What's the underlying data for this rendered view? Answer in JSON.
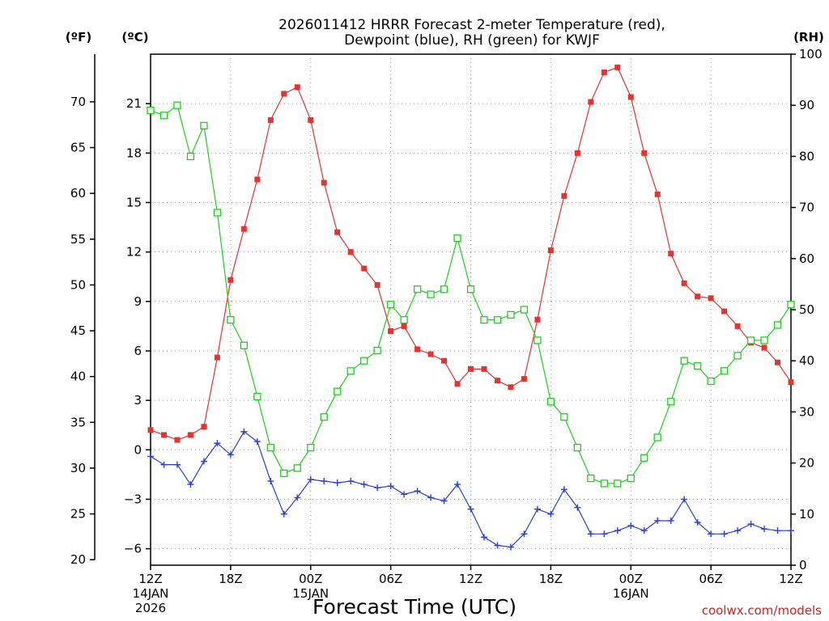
{
  "title_line1": "2026011412 HRRR Forecast 2-meter Temperature (red),",
  "title_line2": "Dewpoint (blue), RH (green) for KWJF",
  "credit": "coolwx.com/models",
  "chart_data": {
    "type": "line",
    "title": "2026011412 HRRR Forecast 2-meter Temperature (red), Dewpoint (blue), RH (green) for KWJF",
    "xlabel": "Forecast Time (UTC)",
    "x_hours": [
      0,
      1,
      2,
      3,
      4,
      5,
      6,
      7,
      8,
      9,
      10,
      11,
      12,
      13,
      14,
      15,
      16,
      17,
      18,
      19,
      20,
      21,
      22,
      23,
      24,
      25,
      26,
      27,
      28,
      29,
      30,
      31,
      32,
      33,
      34,
      35,
      36,
      37,
      38,
      39,
      40,
      41,
      42,
      43,
      44,
      45,
      46,
      47,
      48
    ],
    "x_ticks": [
      {
        "hour": 0,
        "label": "12Z",
        "sub1": "14JAN",
        "sub2": "2026"
      },
      {
        "hour": 6,
        "label": "18Z",
        "sub1": "",
        "sub2": ""
      },
      {
        "hour": 12,
        "label": "00Z",
        "sub1": "15JAN",
        "sub2": ""
      },
      {
        "hour": 18,
        "label": "06Z",
        "sub1": "",
        "sub2": ""
      },
      {
        "hour": 24,
        "label": "12Z",
        "sub1": "",
        "sub2": ""
      },
      {
        "hour": 30,
        "label": "18Z",
        "sub1": "",
        "sub2": ""
      },
      {
        "hour": 36,
        "label": "00Z",
        "sub1": "16JAN",
        "sub2": ""
      },
      {
        "hour": 42,
        "label": "06Z",
        "sub1": "",
        "sub2": ""
      },
      {
        "hour": 48,
        "label": "12Z",
        "sub1": "",
        "sub2": ""
      }
    ],
    "left_axis_f": {
      "unit": "(ºF)",
      "ticks": [
        20,
        25,
        30,
        35,
        40,
        45,
        50,
        55,
        60,
        65,
        70
      ],
      "labels": [
        "20",
        "25",
        "30",
        "35",
        "40",
        "45",
        "50",
        "55",
        "60",
        "65",
        "70"
      ]
    },
    "left_axis_c": {
      "unit": "(ºC)",
      "ticks": [
        -6,
        -3,
        0,
        3,
        6,
        9,
        12,
        15,
        18,
        21
      ],
      "labels": [
        "−6",
        "−3",
        "0",
        "3",
        "6",
        "9",
        "12",
        "15",
        "18",
        "21"
      ],
      "ylim": [
        -7,
        24
      ]
    },
    "right_axis_rh": {
      "unit": "(RH)",
      "ticks": [
        0,
        10,
        20,
        30,
        40,
        50,
        60,
        70,
        80,
        90,
        100
      ],
      "labels": [
        "0",
        "10",
        "20",
        "30",
        "40",
        "50",
        "60",
        "70",
        "80",
        "90",
        "100"
      ],
      "ylim": [
        0,
        100
      ]
    },
    "series": [
      {
        "name": "Temperature",
        "axis": "c",
        "color": "#e8322f",
        "marker": "filled-square",
        "values": [
          1.2,
          0.9,
          0.6,
          0.9,
          1.4,
          5.6,
          10.3,
          13.4,
          16.4,
          20.0,
          21.6,
          22.0,
          20.0,
          16.2,
          13.2,
          12.0,
          11.0,
          10.0,
          7.2,
          7.5,
          6.1,
          5.8,
          5.4,
          4.0,
          4.9,
          4.9,
          4.2,
          3.8,
          4.3,
          7.9,
          12.1,
          15.4,
          18.0,
          21.1,
          22.9,
          23.2,
          21.4,
          18.0,
          15.5,
          11.9,
          10.1,
          9.3,
          9.2,
          8.4,
          7.5,
          6.5,
          6.2,
          5.3,
          4.1
        ]
      },
      {
        "name": "Dewpoint",
        "axis": "c",
        "color": "#2a3fdc",
        "marker": "plus",
        "values": [
          -0.4,
          -0.9,
          -0.9,
          -2.1,
          -0.7,
          0.4,
          -0.3,
          1.1,
          0.5,
          -1.9,
          -3.9,
          -2.9,
          -1.8,
          -1.9,
          -2.0,
          -1.9,
          -2.1,
          -2.3,
          -2.2,
          -2.7,
          -2.5,
          -2.9,
          -3.1,
          -2.1,
          -3.6,
          -5.3,
          -5.8,
          -5.9,
          -5.1,
          -3.6,
          -3.9,
          -2.4,
          -3.5,
          -5.1,
          -5.1,
          -4.9,
          -4.6,
          -4.9,
          -4.3,
          -4.3,
          -3.0,
          -4.4,
          -5.1,
          -5.1,
          -4.9,
          -4.5,
          -4.8,
          -4.9,
          -4.9
        ]
      },
      {
        "name": "RH",
        "axis": "rh",
        "color": "#1ed01e",
        "marker": "open-square",
        "values": [
          89,
          88,
          90,
          80,
          86,
          69,
          48,
          43,
          33,
          23,
          18,
          19,
          23,
          29,
          34,
          38,
          40,
          42,
          51,
          48,
          54,
          53,
          54,
          64,
          54,
          48,
          48,
          49,
          50,
          44,
          32,
          29,
          23,
          17,
          16,
          16,
          17,
          21,
          25,
          32,
          40,
          39,
          36,
          38,
          41,
          44,
          44,
          47,
          51
        ]
      }
    ]
  }
}
